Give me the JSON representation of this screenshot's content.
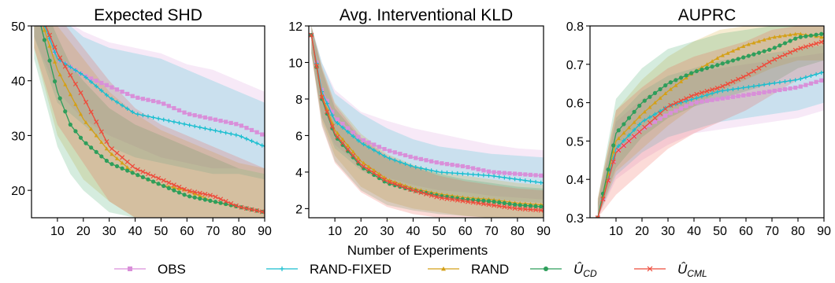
{
  "figure": {
    "xlabel": "Number of Experiments",
    "legend": [
      {
        "label": "OBS",
        "color": "#d98fd9",
        "marker": "square"
      },
      {
        "label": "RAND-FIXED",
        "color": "#17becf",
        "marker": "plus"
      },
      {
        "label": "RAND",
        "color": "#d4a017",
        "marker": "triangle"
      },
      {
        "label": "Û",
        "sub": "CD",
        "color": "#2e9e5b",
        "marker": "circle"
      },
      {
        "label": "Û",
        "sub": "CML",
        "color": "#ee4b3b",
        "marker": "x"
      }
    ]
  },
  "chart_data": [
    {
      "type": "line",
      "title": "Expected SHD",
      "xlim": [
        0,
        90
      ],
      "ylim": [
        15,
        50
      ],
      "xticks": [
        10,
        20,
        30,
        40,
        50,
        60,
        70,
        80,
        90
      ],
      "yticks": [
        20,
        30,
        40,
        50
      ],
      "series": [
        {
          "name": "OBS",
          "color": "#d98fd9",
          "x": [
            1,
            10,
            20,
            30,
            40,
            50,
            60,
            70,
            80,
            90
          ],
          "y": [
            55,
            44,
            41,
            39,
            37,
            36,
            34,
            33,
            32,
            30
          ],
          "lo": [
            48,
            38,
            33,
            30,
            28,
            26,
            25,
            24,
            24,
            23
          ],
          "hi": [
            58,
            52,
            49,
            47,
            46,
            45,
            43,
            42,
            40,
            38
          ]
        },
        {
          "name": "RAND-FIXED",
          "color": "#17becf",
          "x": [
            1,
            10,
            20,
            30,
            40,
            50,
            60,
            70,
            80,
            90
          ],
          "y": [
            55,
            44,
            41,
            37,
            34,
            33,
            32,
            31,
            30,
            28
          ],
          "lo": [
            48,
            36,
            32,
            28,
            26,
            25,
            24,
            23,
            23,
            22
          ],
          "hi": [
            58,
            52,
            48,
            46,
            45,
            44,
            42,
            40,
            38,
            36
          ]
        },
        {
          "name": "RAND",
          "color": "#d4a017",
          "x": [
            1,
            10,
            20,
            30,
            40,
            50,
            60,
            70,
            80,
            90
          ],
          "y": [
            55,
            42,
            33,
            27,
            23,
            21,
            20,
            18,
            17,
            16
          ],
          "lo": [
            46,
            30,
            22,
            18,
            15,
            15,
            15,
            15,
            15,
            15
          ],
          "hi": [
            58,
            50,
            44,
            38,
            34,
            31,
            29,
            27,
            25,
            24
          ]
        },
        {
          "name": "U_CD",
          "color": "#2e9e5b",
          "x": [
            1,
            10,
            15,
            20,
            30,
            40,
            50,
            60,
            70,
            80,
            90
          ],
          "y": [
            55,
            38,
            32,
            29,
            25,
            23,
            21,
            19,
            18,
            17,
            16
          ],
          "lo": [
            44,
            28,
            23,
            20,
            16,
            15,
            15,
            15,
            15,
            15,
            15
          ],
          "hi": [
            58,
            48,
            43,
            40,
            35,
            32,
            30,
            28,
            26,
            24,
            23
          ]
        },
        {
          "name": "U_CML",
          "color": "#ee4b3b",
          "x": [
            1,
            10,
            20,
            30,
            40,
            50,
            60,
            70,
            80,
            90
          ],
          "y": [
            55,
            45,
            37,
            28,
            24,
            22,
            20,
            19,
            17,
            16
          ],
          "lo": [
            46,
            32,
            25,
            18,
            15,
            15,
            15,
            15,
            15,
            15
          ],
          "hi": [
            58,
            52,
            46,
            40,
            35,
            32,
            30,
            28,
            26,
            24
          ]
        }
      ]
    },
    {
      "type": "line",
      "title": "Avg. Interventional KLD",
      "xlim": [
        0,
        90
      ],
      "ylim": [
        1.5,
        12
      ],
      "xticks": [
        10,
        20,
        30,
        40,
        50,
        60,
        70,
        80,
        90
      ],
      "yticks": [
        2,
        4,
        6,
        8,
        10,
        12
      ],
      "series": [
        {
          "name": "OBS",
          "color": "#d98fd9",
          "x": [
            1,
            5,
            10,
            20,
            30,
            40,
            50,
            60,
            70,
            80,
            90
          ],
          "y": [
            11.5,
            8.5,
            7.0,
            5.8,
            5.2,
            4.8,
            4.5,
            4.3,
            4.0,
            3.9,
            3.8
          ],
          "lo": [
            10.5,
            7.0,
            5.5,
            4.3,
            3.7,
            3.3,
            3.0,
            2.9,
            2.7,
            2.6,
            2.5
          ],
          "hi": [
            12.0,
            10.0,
            8.5,
            7.3,
            6.8,
            6.4,
            6.1,
            5.8,
            5.5,
            5.3,
            5.2
          ]
        },
        {
          "name": "RAND-FIXED",
          "color": "#17becf",
          "x": [
            1,
            5,
            10,
            20,
            30,
            40,
            50,
            60,
            70,
            80,
            90
          ],
          "y": [
            11.5,
            8.4,
            6.8,
            5.6,
            4.8,
            4.3,
            4.0,
            3.9,
            3.8,
            3.6,
            3.4
          ],
          "lo": [
            10.5,
            7.0,
            5.3,
            4.1,
            3.4,
            2.9,
            2.7,
            2.6,
            2.5,
            2.4,
            2.3
          ],
          "hi": [
            12.0,
            10.0,
            8.3,
            7.2,
            6.4,
            5.8,
            5.4,
            5.2,
            5.0,
            4.9,
            4.8
          ]
        },
        {
          "name": "RAND",
          "color": "#d4a017",
          "x": [
            1,
            5,
            10,
            20,
            30,
            40,
            50,
            60,
            70,
            80,
            90
          ],
          "y": [
            11.5,
            8.2,
            6.3,
            4.6,
            3.6,
            3.1,
            2.8,
            2.6,
            2.5,
            2.3,
            2.2
          ],
          "lo": [
            10.5,
            6.8,
            4.9,
            3.2,
            2.4,
            2.0,
            1.8,
            1.6,
            1.5,
            1.5,
            1.5
          ],
          "hi": [
            12.0,
            9.8,
            7.8,
            6.1,
            5.0,
            4.4,
            4.0,
            3.8,
            3.6,
            3.4,
            3.3
          ]
        },
        {
          "name": "U_CD",
          "color": "#2e9e5b",
          "x": [
            1,
            5,
            10,
            20,
            30,
            40,
            50,
            60,
            70,
            80,
            90
          ],
          "y": [
            11.5,
            8.0,
            6.0,
            4.3,
            3.4,
            3.0,
            2.7,
            2.5,
            2.4,
            2.2,
            2.1
          ],
          "lo": [
            10.5,
            6.6,
            4.6,
            3.0,
            2.2,
            1.9,
            1.7,
            1.6,
            1.5,
            1.5,
            1.5
          ],
          "hi": [
            12.0,
            9.6,
            7.5,
            5.8,
            4.8,
            4.3,
            3.9,
            3.6,
            3.4,
            3.2,
            3.1
          ]
        },
        {
          "name": "U_CML",
          "color": "#ee4b3b",
          "x": [
            1,
            5,
            10,
            20,
            30,
            40,
            50,
            60,
            70,
            80,
            90
          ],
          "y": [
            11.5,
            8.1,
            6.1,
            4.4,
            3.5,
            3.0,
            2.6,
            2.4,
            2.2,
            2.0,
            1.9
          ],
          "lo": [
            10.5,
            6.5,
            4.5,
            2.9,
            2.1,
            1.7,
            1.5,
            1.5,
            1.5,
            1.5,
            1.5
          ],
          "hi": [
            12.0,
            9.7,
            7.7,
            5.9,
            4.9,
            4.3,
            3.8,
            3.5,
            3.3,
            3.1,
            3.0
          ]
        }
      ]
    },
    {
      "type": "line",
      "title": "AUPRC",
      "xlim": [
        0,
        90
      ],
      "ylim": [
        0.3,
        0.8
      ],
      "xticks": [
        10,
        20,
        30,
        40,
        50,
        60,
        70,
        80,
        90
      ],
      "yticks": [
        0.3,
        0.4,
        0.5,
        0.6,
        0.7,
        0.8
      ],
      "series": [
        {
          "name": "OBS",
          "color": "#d98fd9",
          "x": [
            3,
            10,
            20,
            30,
            40,
            50,
            60,
            70,
            80,
            90
          ],
          "y": [
            0.3,
            0.47,
            0.53,
            0.57,
            0.6,
            0.61,
            0.62,
            0.63,
            0.64,
            0.66
          ],
          "lo": [
            0.3,
            0.4,
            0.45,
            0.49,
            0.52,
            0.53,
            0.54,
            0.55,
            0.56,
            0.58
          ],
          "hi": [
            0.34,
            0.55,
            0.61,
            0.65,
            0.68,
            0.69,
            0.7,
            0.71,
            0.72,
            0.73
          ]
        },
        {
          "name": "RAND-FIXED",
          "color": "#17becf",
          "x": [
            3,
            10,
            20,
            30,
            40,
            50,
            60,
            70,
            80,
            90
          ],
          "y": [
            0.3,
            0.48,
            0.55,
            0.59,
            0.61,
            0.63,
            0.64,
            0.65,
            0.66,
            0.68
          ],
          "lo": [
            0.3,
            0.41,
            0.47,
            0.51,
            0.53,
            0.55,
            0.56,
            0.57,
            0.58,
            0.6
          ],
          "hi": [
            0.34,
            0.56,
            0.63,
            0.67,
            0.69,
            0.71,
            0.72,
            0.73,
            0.74,
            0.75
          ]
        },
        {
          "name": "RAND",
          "color": "#d4a017",
          "x": [
            3,
            10,
            20,
            30,
            40,
            50,
            60,
            70,
            80,
            90
          ],
          "y": [
            0.3,
            0.5,
            0.57,
            0.63,
            0.68,
            0.72,
            0.75,
            0.77,
            0.78,
            0.77
          ],
          "lo": [
            0.3,
            0.42,
            0.48,
            0.54,
            0.59,
            0.63,
            0.66,
            0.69,
            0.71,
            0.71
          ],
          "hi": [
            0.35,
            0.58,
            0.66,
            0.72,
            0.76,
            0.79,
            0.8,
            0.8,
            0.8,
            0.8
          ]
        },
        {
          "name": "U_CD",
          "color": "#2e9e5b",
          "x": [
            3,
            10,
            20,
            30,
            40,
            50,
            60,
            70,
            80,
            90
          ],
          "y": [
            0.3,
            0.52,
            0.6,
            0.65,
            0.68,
            0.7,
            0.72,
            0.74,
            0.77,
            0.78
          ],
          "lo": [
            0.3,
            0.43,
            0.51,
            0.56,
            0.59,
            0.61,
            0.63,
            0.65,
            0.69,
            0.71
          ],
          "hi": [
            0.35,
            0.61,
            0.69,
            0.74,
            0.76,
            0.78,
            0.79,
            0.8,
            0.8,
            0.8
          ]
        },
        {
          "name": "U_CML",
          "color": "#ee4b3b",
          "x": [
            3,
            10,
            20,
            30,
            40,
            50,
            60,
            70,
            80,
            90
          ],
          "y": [
            0.3,
            0.47,
            0.53,
            0.59,
            0.62,
            0.64,
            0.67,
            0.71,
            0.74,
            0.76
          ],
          "lo": [
            0.3,
            0.36,
            0.42,
            0.48,
            0.52,
            0.55,
            0.58,
            0.62,
            0.66,
            0.68
          ],
          "hi": [
            0.35,
            0.58,
            0.64,
            0.69,
            0.72,
            0.74,
            0.76,
            0.79,
            0.8,
            0.8
          ]
        }
      ]
    }
  ]
}
